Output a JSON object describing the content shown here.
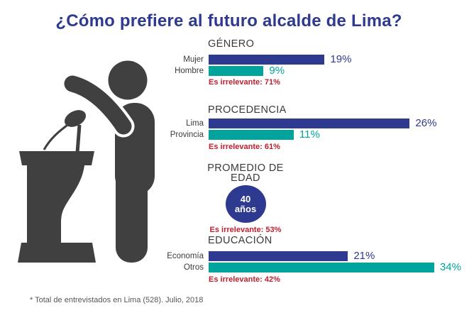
{
  "title": "¿Cómo prefiere al futuro alcalde de Lima?",
  "footnote": "* Total de entrevistados en Lima (528). Julio, 2018",
  "colors": {
    "accent_blue": "#2E3A8F",
    "accent_teal": "#00A49C",
    "note_red": "#BE1E2D",
    "heading_dark": "#3A3A3A",
    "silhouette_gray": "#404040"
  },
  "chart_data": [
    {
      "type": "bar",
      "title": "GÉNERO",
      "categories": [
        "Mujer",
        "Hombre"
      ],
      "values": [
        19,
        9
      ],
      "labels": [
        "19%",
        "9%"
      ],
      "unit": "%",
      "note": "Es irrelevante: 71%"
    },
    {
      "type": "bar",
      "title": "PROCEDENCIA",
      "categories": [
        "Lima",
        "Provincia"
      ],
      "values": [
        26,
        11
      ],
      "labels": [
        "26%",
        "11%"
      ],
      "unit": "%",
      "note": "Es irrelevante: 61%"
    },
    {
      "type": "badge",
      "title": "PROMEDIO DE EDAD",
      "title_lines": [
        "PROMEDIO DE",
        "EDAD"
      ],
      "value": "40 años",
      "value_lines": [
        "40",
        "años"
      ],
      "note": "Es irrelevante: 53%"
    },
    {
      "type": "bar",
      "title": "EDUCACIÓN",
      "categories": [
        "Economía",
        "Otros"
      ],
      "values": [
        21,
        34
      ],
      "labels": [
        "21%",
        "34%"
      ],
      "unit": "%",
      "note": "Es irrelevante: 42%"
    }
  ]
}
